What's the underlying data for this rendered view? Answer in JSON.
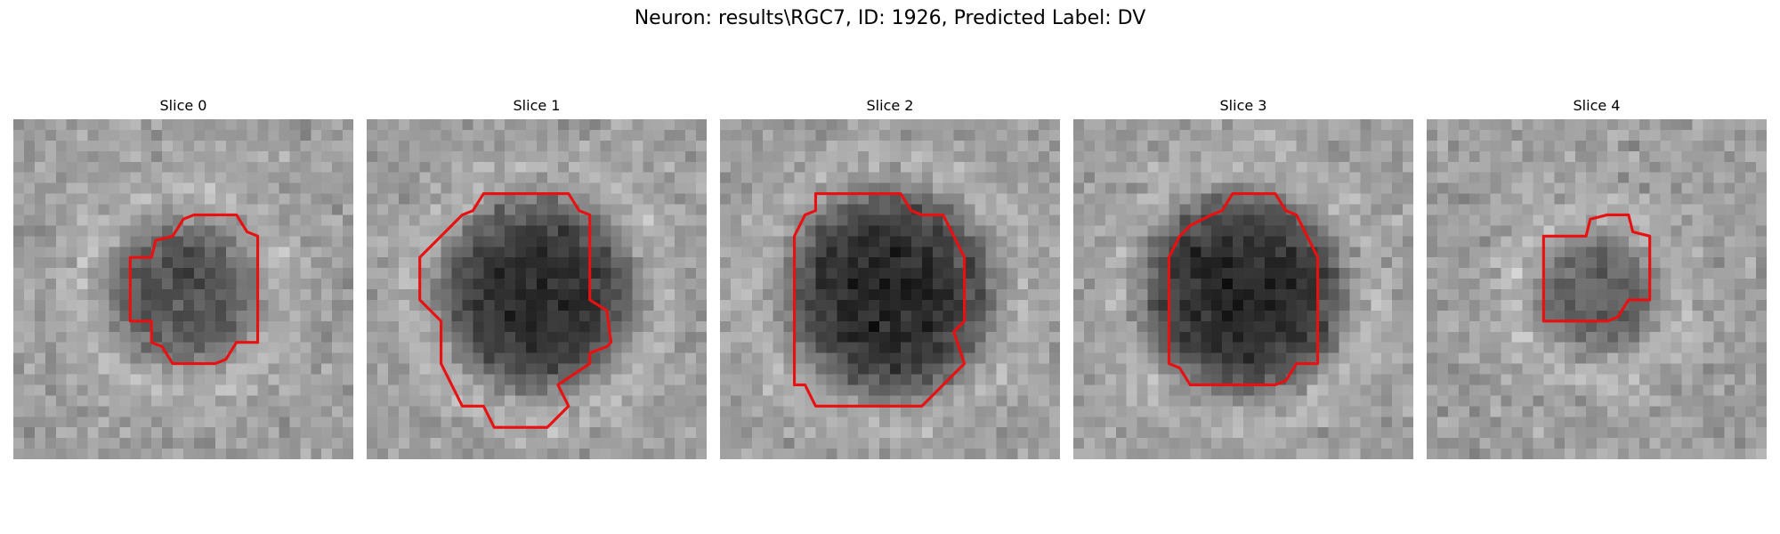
{
  "figure": {
    "title": "Neuron: results\\RGC7, ID: 1926, Predicted Label: DV"
  },
  "colors": {
    "contour": "#e81010",
    "background": "#ffffff"
  },
  "panels": [
    {
      "title": "Slice 0",
      "blob_strength": 0.55,
      "blob_radius": 6.0,
      "contour": [
        [
          8.5,
          4.5
        ],
        [
          10.5,
          4.5
        ],
        [
          11.0,
          5.3
        ],
        [
          11.5,
          5.5
        ],
        [
          11.5,
          10.5
        ],
        [
          10.5,
          10.5
        ],
        [
          10.0,
          11.3
        ],
        [
          9.5,
          11.5
        ],
        [
          7.5,
          11.5
        ],
        [
          7.0,
          10.7
        ],
        [
          6.5,
          10.5
        ],
        [
          6.5,
          9.5
        ],
        [
          5.5,
          9.5
        ],
        [
          5.5,
          6.5
        ],
        [
          6.5,
          6.5
        ],
        [
          6.7,
          5.7
        ],
        [
          7.5,
          5.5
        ],
        [
          8.0,
          4.7
        ]
      ]
    },
    {
      "title": "Slice 1",
      "blob_strength": 0.8,
      "blob_radius": 7.5,
      "contour": [
        [
          5.5,
          3.5
        ],
        [
          9.5,
          3.5
        ],
        [
          10.0,
          4.3
        ],
        [
          10.5,
          4.5
        ],
        [
          10.5,
          8.5
        ],
        [
          11.3,
          9.0
        ],
        [
          11.5,
          10.5
        ],
        [
          11.3,
          10.7
        ],
        [
          10.5,
          11.0
        ],
        [
          10.5,
          11.5
        ],
        [
          9.0,
          12.5
        ],
        [
          9.5,
          13.5
        ],
        [
          8.5,
          14.5
        ],
        [
          6.0,
          14.5
        ],
        [
          5.5,
          13.5
        ],
        [
          4.5,
          13.5
        ],
        [
          4.0,
          12.5
        ],
        [
          3.5,
          11.5
        ],
        [
          3.5,
          9.5
        ],
        [
          3.0,
          9.0
        ],
        [
          2.5,
          8.5
        ],
        [
          2.5,
          6.5
        ],
        [
          3.5,
          5.5
        ],
        [
          4.5,
          4.5
        ],
        [
          5.0,
          4.3
        ]
      ]
    },
    {
      "title": "Slice 2",
      "blob_strength": 0.85,
      "blob_radius": 8.0,
      "contour": [
        [
          4.5,
          3.5
        ],
        [
          8.5,
          3.5
        ],
        [
          9.0,
          4.3
        ],
        [
          9.5,
          4.5
        ],
        [
          10.5,
          4.5
        ],
        [
          11.0,
          5.5
        ],
        [
          11.5,
          6.5
        ],
        [
          11.5,
          9.5
        ],
        [
          11.0,
          10.0
        ],
        [
          11.5,
          11.5
        ],
        [
          11.0,
          12.0
        ],
        [
          10.5,
          12.5
        ],
        [
          10.0,
          13.0
        ],
        [
          9.5,
          13.5
        ],
        [
          4.5,
          13.5
        ],
        [
          4.0,
          12.5
        ],
        [
          3.5,
          12.5
        ],
        [
          3.5,
          5.5
        ],
        [
          4.0,
          4.5
        ],
        [
          4.5,
          4.3
        ]
      ]
    },
    {
      "title": "Slice 3",
      "blob_strength": 0.85,
      "blob_radius": 7.8,
      "contour": [
        [
          7.5,
          3.5
        ],
        [
          9.5,
          3.5
        ],
        [
          10.0,
          4.3
        ],
        [
          10.5,
          4.5
        ],
        [
          11.0,
          5.5
        ],
        [
          11.5,
          6.5
        ],
        [
          11.5,
          11.5
        ],
        [
          10.5,
          11.5
        ],
        [
          10.0,
          12.3
        ],
        [
          9.5,
          12.5
        ],
        [
          5.5,
          12.5
        ],
        [
          5.0,
          11.7
        ],
        [
          4.5,
          11.5
        ],
        [
          4.5,
          6.5
        ],
        [
          5.0,
          5.5
        ],
        [
          5.5,
          5.0
        ],
        [
          6.5,
          4.5
        ],
        [
          7.0,
          4.3
        ]
      ]
    },
    {
      "title": "Slice 4",
      "blob_strength": 0.45,
      "blob_radius": 5.0,
      "contour": [
        [
          8.5,
          4.5
        ],
        [
          9.5,
          4.5
        ],
        [
          9.7,
          5.3
        ],
        [
          10.5,
          5.5
        ],
        [
          10.5,
          8.5
        ],
        [
          9.5,
          8.5
        ],
        [
          9.0,
          9.3
        ],
        [
          8.5,
          9.5
        ],
        [
          5.5,
          9.5
        ],
        [
          5.5,
          5.5
        ],
        [
          7.5,
          5.5
        ],
        [
          7.7,
          4.7
        ]
      ]
    }
  ]
}
